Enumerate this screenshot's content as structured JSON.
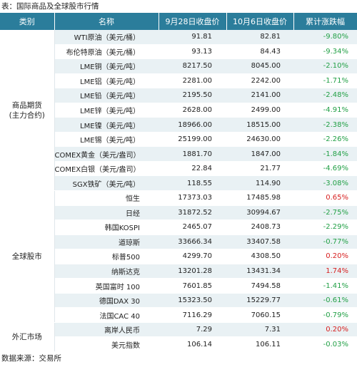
{
  "caption": "表：国际商品及全球股市行情",
  "footer": "数据来源：交易所",
  "colors": {
    "header_bg": "#2b7d9b",
    "stripe": "#e9f1f4",
    "up": "#d72020",
    "down": "#22a046"
  },
  "headers": [
    "类别",
    "名称",
    "9月28日收盘价",
    "10月6日收盘价",
    "累计涨跌幅"
  ],
  "groups": [
    {
      "label": "商品期货\n(主力合约)",
      "rows": [
        {
          "name": "WTI原油（美元/桶）",
          "v1": "91.81",
          "v2": "82.81",
          "chg": "-9.80%",
          "dir": "down"
        },
        {
          "name": "布伦特原油（美元/桶）",
          "v1": "93.13",
          "v2": "84.43",
          "chg": "-9.34%",
          "dir": "down"
        },
        {
          "name": "LME铜（美元/吨）",
          "v1": "8217.50",
          "v2": "8045.00",
          "chg": "-2.10%",
          "dir": "down"
        },
        {
          "name": "LME铝（美元/吨）",
          "v1": "2281.00",
          "v2": "2242.00",
          "chg": "-1.71%",
          "dir": "down"
        },
        {
          "name": "LME铅（美元/吨）",
          "v1": "2195.50",
          "v2": "2141.00",
          "chg": "-2.48%",
          "dir": "down"
        },
        {
          "name": "LME锌（美元/吨）",
          "v1": "2628.00",
          "v2": "2499.00",
          "chg": "-4.91%",
          "dir": "down"
        },
        {
          "name": "LME镍（美元/吨）",
          "v1": "18966.00",
          "v2": "18515.00",
          "chg": "-2.38%",
          "dir": "down"
        },
        {
          "name": "LME锡（美元/吨）",
          "v1": "25199.00",
          "v2": "24630.00",
          "chg": "-2.26%",
          "dir": "down"
        },
        {
          "name": "COMEX黄金（美元/盎司）",
          "v1": "1881.70",
          "v2": "1847.00",
          "chg": "-1.84%",
          "dir": "down"
        },
        {
          "name": "COMEX白银（美元/盎司）",
          "v1": "22.84",
          "v2": "21.77",
          "chg": "-4.69%",
          "dir": "down"
        },
        {
          "name": "SGX铁矿（美元/吨）",
          "v1": "118.55",
          "v2": "114.90",
          "chg": "-3.08%",
          "dir": "down"
        }
      ]
    },
    {
      "label": "全球股市",
      "rows": [
        {
          "name": "恒生",
          "v1": "17373.03",
          "v2": "17485.98",
          "chg": "0.65%",
          "dir": "up"
        },
        {
          "name": "日经",
          "v1": "31872.52",
          "v2": "30994.67",
          "chg": "-2.75%",
          "dir": "down"
        },
        {
          "name": "韩国KOSPI",
          "v1": "2465.07",
          "v2": "2408.73",
          "chg": "-2.29%",
          "dir": "down"
        },
        {
          "name": "道琼斯",
          "v1": "33666.34",
          "v2": "33407.58",
          "chg": "-0.77%",
          "dir": "down"
        },
        {
          "name": "标普500",
          "v1": "4299.70",
          "v2": "4308.50",
          "chg": "0.20%",
          "dir": "up"
        },
        {
          "name": "纳斯达克",
          "v1": "13201.28",
          "v2": "13431.34",
          "chg": "1.74%",
          "dir": "up"
        },
        {
          "name": "英国富时 100",
          "v1": "7601.85",
          "v2": "7494.58",
          "chg": "-1.41%",
          "dir": "down"
        },
        {
          "name": "德国DAX 30",
          "v1": "15323.50",
          "v2": "15229.77",
          "chg": "-0.61%",
          "dir": "down"
        },
        {
          "name": "法国CAC 40",
          "v1": "7116.29",
          "v2": "7060.15",
          "chg": "-0.79%",
          "dir": "down"
        }
      ]
    },
    {
      "label": "外汇市场",
      "rows": [
        {
          "name": "离岸人民币",
          "v1": "7.29",
          "v2": "7.31",
          "chg": "0.20%",
          "dir": "up"
        },
        {
          "name": "美元指数",
          "v1": "106.14",
          "v2": "106.11",
          "chg": "-0.03%",
          "dir": "down"
        }
      ]
    }
  ]
}
